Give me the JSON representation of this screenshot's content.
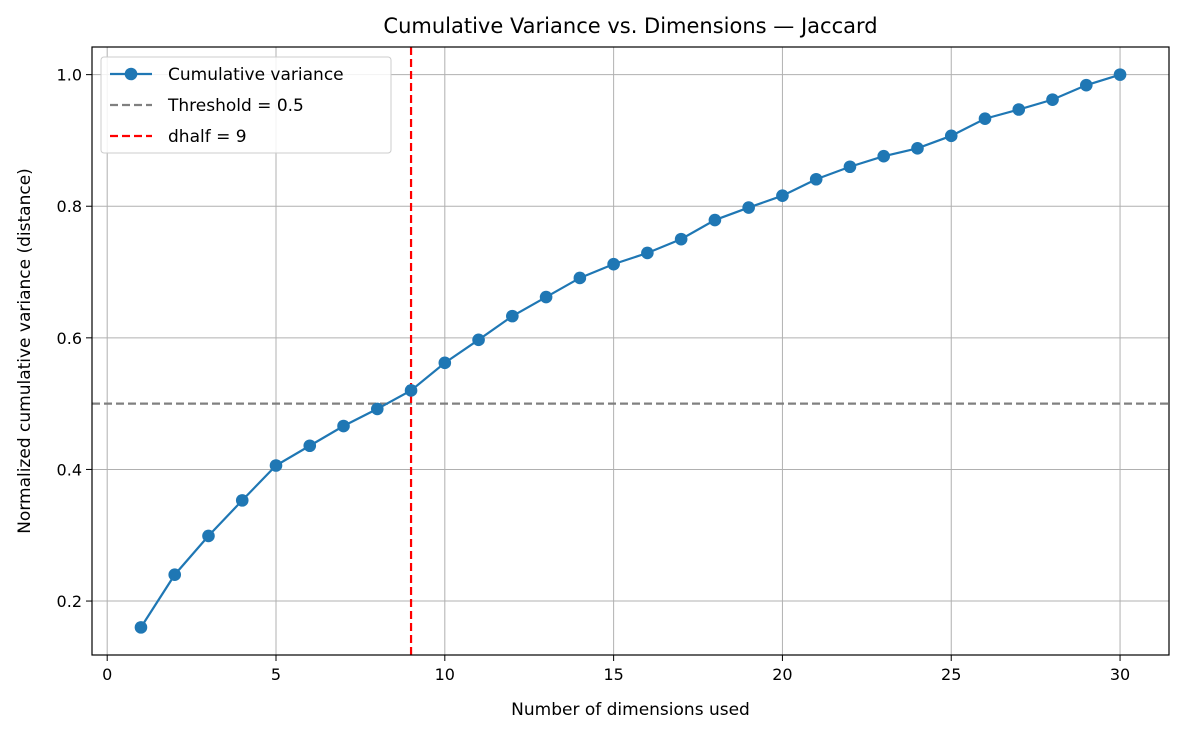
{
  "chart_data": {
    "type": "line",
    "title": "Cumulative Variance vs. Dimensions — Jaccard",
    "xlabel": "Number of dimensions used",
    "ylabel": "Normalized cumulative variance (distance)",
    "xlim": [
      -0.45,
      31.45
    ],
    "ylim": [
      0.118,
      1.042
    ],
    "xticks": [
      0,
      5,
      10,
      15,
      20,
      25,
      30
    ],
    "xtick_labels": [
      "0",
      "5",
      "10",
      "15",
      "20",
      "25",
      "30"
    ],
    "yticks": [
      0.2,
      0.4,
      0.6,
      0.8,
      1.0
    ],
    "ytick_labels": [
      "0.2",
      "0.4",
      "0.6",
      "0.8",
      "1.0"
    ],
    "grid": true,
    "legend_position": "top-left",
    "series": [
      {
        "name": "Cumulative variance",
        "color": "#1f77b4",
        "style": "solid-with-markers",
        "x": [
          1,
          2,
          3,
          4,
          5,
          6,
          7,
          8,
          9,
          10,
          11,
          12,
          13,
          14,
          15,
          16,
          17,
          18,
          19,
          20,
          21,
          22,
          23,
          24,
          25,
          26,
          27,
          28,
          29,
          30
        ],
        "y": [
          0.16,
          0.24,
          0.299,
          0.353,
          0.406,
          0.436,
          0.466,
          0.492,
          0.52,
          0.562,
          0.597,
          0.633,
          0.662,
          0.691,
          0.712,
          0.729,
          0.75,
          0.779,
          0.798,
          0.816,
          0.841,
          0.86,
          0.876,
          0.888,
          0.907,
          0.933,
          0.947,
          0.962,
          0.984,
          1.0
        ]
      }
    ],
    "reference_lines": [
      {
        "name": "Threshold = 0.5",
        "orientation": "horizontal",
        "value": 0.5,
        "color": "#808080",
        "style": "dashed"
      },
      {
        "name": "dhalf = 9",
        "orientation": "vertical",
        "value": 9,
        "color": "#ff0000",
        "style": "dashed"
      }
    ]
  }
}
